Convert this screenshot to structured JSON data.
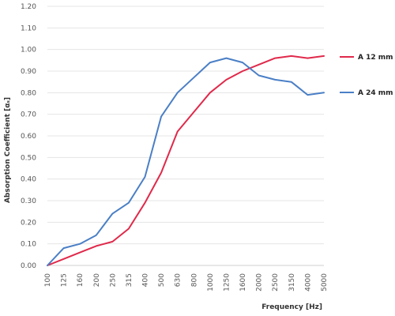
{
  "chart_data": {
    "type": "line",
    "xlabel": "Frequency [Hz]",
    "ylabel": "Absorption Coefficient [αₛ]",
    "categories": [
      "100",
      "125",
      "160",
      "200",
      "250",
      "315",
      "400",
      "500",
      "630",
      "800",
      "1000",
      "1250",
      "1600",
      "2000",
      "2500",
      "3150",
      "4000",
      "5000"
    ],
    "ylim": [
      0,
      1.2
    ],
    "yticks": [
      "0.00",
      "0.10",
      "0.20",
      "0.30",
      "0.40",
      "0.50",
      "0.60",
      "0.70",
      "0.80",
      "0.90",
      "1.00",
      "1.10",
      "1.20"
    ],
    "grid": true,
    "legend_position": "right",
    "series": [
      {
        "name": "A 12 mm",
        "color": "#e0294a",
        "values": [
          0.0,
          0.03,
          0.06,
          0.09,
          0.11,
          0.17,
          0.29,
          0.43,
          0.62,
          0.71,
          0.8,
          0.86,
          0.9,
          0.93,
          0.96,
          0.97,
          0.96,
          0.97
        ]
      },
      {
        "name": "A 24 mm",
        "color": "#4a7fc6",
        "values": [
          0.0,
          0.08,
          0.1,
          0.14,
          0.24,
          0.29,
          0.41,
          0.69,
          0.8,
          0.87,
          0.94,
          0.96,
          0.94,
          0.88,
          0.86,
          0.85,
          0.79,
          0.8
        ]
      }
    ]
  }
}
